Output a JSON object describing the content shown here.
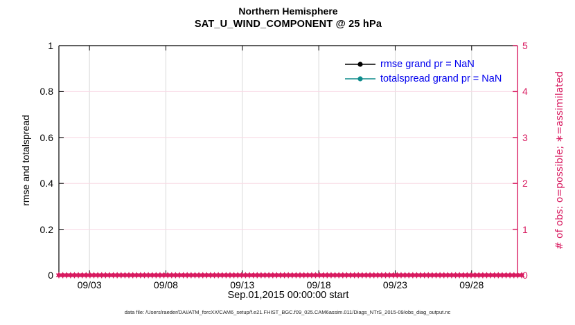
{
  "chart_data": {
    "type": "line",
    "title": "Northern Hemisphere",
    "subtitle": "SAT_U_WIND_COMPONENT @ 25 hPa",
    "xlabel": "Sep.01,2015 00:00:00 start",
    "caption": "data file: /Users/raeder/DAI/ATM_forcXX/CAM6_setup/f.e21.FHIST_BGC.f09_025.CAM6assim.011/Diags_NTrS_2015-09/obs_diag_output.nc",
    "x_axis": {
      "start_day": 0,
      "end_day": 30,
      "ticks": [
        {
          "day": 2,
          "label": "09/03"
        },
        {
          "day": 7,
          "label": "09/08"
        },
        {
          "day": 12,
          "label": "09/13"
        },
        {
          "day": 17,
          "label": "09/18"
        },
        {
          "day": 22,
          "label": "09/23"
        },
        {
          "day": 27,
          "label": "09/28"
        }
      ]
    },
    "left_axis": {
      "label": "rmse and totalspread",
      "min": 0,
      "max": 1,
      "ticks": [
        0,
        0.2,
        0.4,
        0.6,
        0.8,
        1
      ],
      "tick_labels": [
        "0",
        "0.2",
        "0.4",
        "0.6",
        "0.8",
        "1"
      ],
      "color": "#000000"
    },
    "right_axis": {
      "label": "# of obs: o=possible; ∗=assimilated",
      "min": 0,
      "max": 5,
      "ticks": [
        0,
        1,
        2,
        3,
        4,
        5
      ],
      "tick_labels": [
        "0",
        "1",
        "2",
        "3",
        "4",
        "5"
      ],
      "color": "#d81b60"
    },
    "grid": {
      "on": true,
      "x_color": "#d8d8d8",
      "y_color": "#f8d9e4"
    },
    "legend": {
      "position": "top-right-inside",
      "box": false,
      "text_color": "#0000ee",
      "entries": [
        {
          "label": "rmse grand pr = NaN",
          "color": "#000000",
          "marker": "filled-circle"
        },
        {
          "label": "totalspread grand pr = NaN",
          "color": "#0e8c8c",
          "marker": "filled-circle"
        }
      ]
    },
    "series": [
      {
        "name": "rmse",
        "color": "#000000",
        "values": "NaN"
      },
      {
        "name": "totalspread",
        "color": "#0e8c8c",
        "values": "NaN"
      },
      {
        "name": "possible_obs",
        "marker": "o",
        "color": "#d81b60",
        "value_right_axis": 0,
        "count": 120
      },
      {
        "name": "assimilated_obs",
        "marker": "∗",
        "color": "#d81b60",
        "value_right_axis": 0,
        "count": 120
      }
    ]
  }
}
